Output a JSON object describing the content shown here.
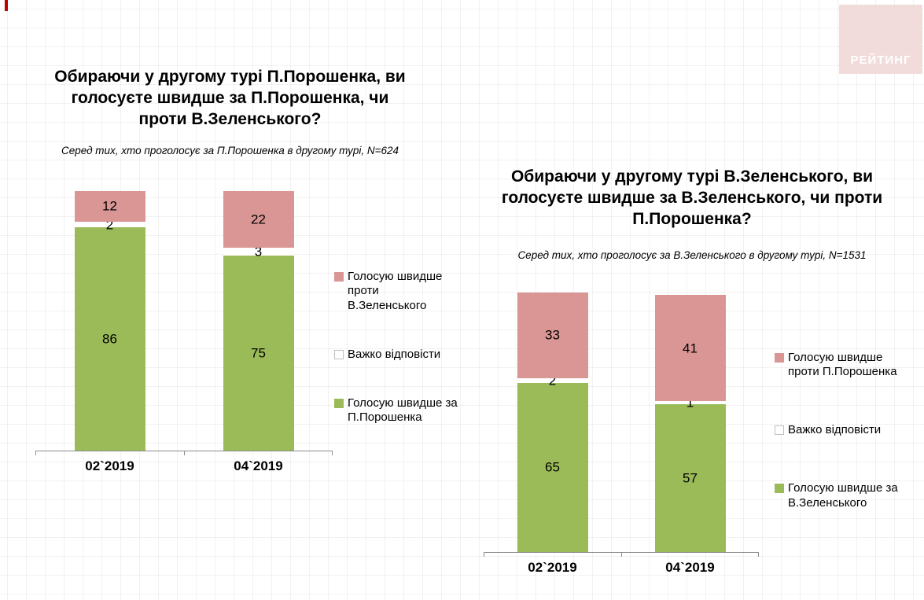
{
  "logo": {
    "text": "РЕЙТИНГ"
  },
  "colors": {
    "green": "#9bbb59",
    "pink": "#d99694",
    "white": "#ffffff",
    "axis": "#8c8c8c",
    "logo_bg": "#f2dcdb",
    "logo_text": "#ffffff",
    "accent_red": "#c00000"
  },
  "chart_data": [
    {
      "type": "bar",
      "stacked": true,
      "title": "Обираючи у другому турі П.Порошенка, ви голосуєте швидше за П.Порошенка, чи проти В.Зеленського?",
      "subtitle": "Серед тих, хто проголосує за П.Порошенка в другому турі, N=624",
      "categories": [
        "02`2019",
        "04`2019"
      ],
      "ylim": [
        0,
        100
      ],
      "grid": false,
      "legend_position": "right",
      "series": [
        {
          "name": "Голосую швидше за П.Порошенка",
          "color": "green",
          "values": [
            86,
            75
          ]
        },
        {
          "name": "Важко відповісти",
          "color": "white",
          "values": [
            2,
            3
          ]
        },
        {
          "name": "Голосую швидше проти В.Зеленського",
          "color": "pink",
          "values": [
            12,
            22
          ]
        }
      ]
    },
    {
      "type": "bar",
      "stacked": true,
      "title": "Обираючи у другому турі В.Зеленського, ви голосуєте швидше за В.Зеленського, чи проти П.Порошенка?",
      "subtitle": "Серед тих, хто проголосує за В.Зеленського в другому турі, N=1531",
      "categories": [
        "02`2019",
        "04`2019"
      ],
      "ylim": [
        0,
        100
      ],
      "grid": false,
      "legend_position": "right",
      "series": [
        {
          "name": "Голосую швидше за В.Зеленського",
          "color": "green",
          "values": [
            65,
            57
          ]
        },
        {
          "name": "Важко відповісти",
          "color": "white",
          "values": [
            2,
            1
          ]
        },
        {
          "name": "Голосую швидше проти П.Порошенка",
          "color": "pink",
          "values": [
            33,
            41
          ]
        }
      ]
    }
  ]
}
